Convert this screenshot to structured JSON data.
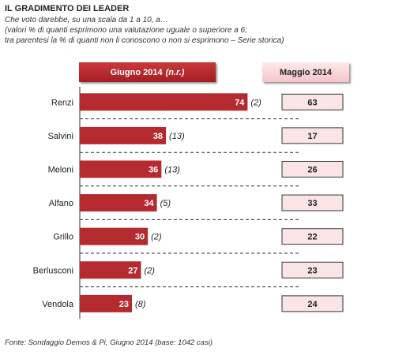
{
  "title": "IL GRADIMENTO DEI LEADER",
  "subtitle_line1": "Che voto darebbe, su una scala da 1 a 10, a…",
  "subtitle_line2": "(valori % di quanti esprimono una valutazione uguale o superiore a 6;",
  "subtitle_line3": "tra parentesi la % di quanti non li conoscono o non si esprimono – Serie storica)",
  "header_left": "Giugno 2014",
  "header_left_note": "(n.r.)",
  "header_right": "Maggio 2014",
  "footer": "Fonte: Sondaggio Demos & Pi, Giugno 2014 (base: 1042 casi)",
  "colors": {
    "bar": "#b52a2e",
    "may_box": "#fbe4e6",
    "may_border": "#333333"
  },
  "chart_data": {
    "type": "bar",
    "orientation": "horizontal",
    "categories": [
      "Renzi",
      "Salvini",
      "Meloni",
      "Alfano",
      "Grillo",
      "Berlusconi",
      "Vendola"
    ],
    "series": [
      {
        "name": "Giugno 2014",
        "values": [
          74,
          38,
          36,
          34,
          30,
          27,
          23
        ]
      },
      {
        "name": "Maggio 2014",
        "values": [
          63,
          17,
          26,
          33,
          22,
          23,
          24
        ]
      }
    ],
    "parentheses": [
      "(2)",
      "(13)",
      "(13)",
      "(5)",
      "(2)",
      "(2)",
      "(8)"
    ]
  }
}
